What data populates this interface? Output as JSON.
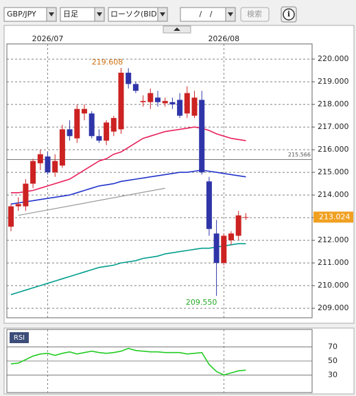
{
  "toolbar": {
    "pair": "GBP/JPY",
    "period": "日足",
    "chart_kind": "ローソク(BID)",
    "date": "/ /",
    "search": "検索",
    "info": "i"
  },
  "chart_data": {
    "type": "candlestick",
    "categories": [
      null,
      null,
      null,
      null,
      null,
      "2026/07",
      null,
      null,
      null,
      null,
      null,
      null,
      null,
      null,
      null,
      null,
      null,
      null,
      null,
      null,
      null,
      null,
      null,
      null,
      null,
      null,
      null,
      null,
      null,
      "2026/08",
      null,
      null,
      null
    ],
    "open": [
      212.6,
      213.5,
      213.5,
      214.5,
      215.4,
      215.7,
      215.0,
      215.3,
      216.9,
      216.5,
      217.6,
      217.6,
      216.6,
      216.4,
      216.8,
      216.9,
      219.4,
      218.9,
      218.1,
      218.1,
      218.3,
      218.05,
      218.1,
      218.2,
      217.6,
      217.5,
      218.2,
      214.6,
      212.3,
      211.0,
      212.0,
      212.2,
      213.0
    ],
    "high": [
      213.6,
      213.9,
      214.7,
      215.6,
      216.0,
      215.9,
      215.8,
      217.1,
      217.3,
      218.0,
      218.0,
      217.7,
      216.9,
      217.3,
      217.5,
      219.608,
      219.6,
      219.0,
      218.4,
      218.7,
      218.6,
      218.3,
      218.3,
      218.5,
      218.8,
      218.6,
      218.6,
      214.8,
      212.9,
      212.3,
      212.4,
      213.3,
      213.2
    ],
    "low": [
      212.4,
      213.3,
      213.3,
      214.3,
      215.1,
      214.9,
      214.8,
      215.2,
      216.4,
      216.3,
      217.3,
      216.5,
      216.3,
      216.2,
      216.6,
      216.7,
      218.7,
      218.5,
      217.9,
      217.8,
      217.9,
      217.9,
      217.8,
      217.4,
      217.4,
      217.4,
      214.9,
      212.2,
      209.55,
      210.9,
      211.8,
      212.0,
      212.9
    ],
    "close": [
      213.5,
      213.6,
      214.5,
      215.5,
      215.8,
      215.0,
      215.5,
      216.9,
      216.6,
      217.8,
      217.8,
      216.6,
      216.4,
      217.2,
      217.4,
      219.4,
      218.9,
      218.6,
      218.15,
      218.5,
      218.1,
      218.15,
      218.0,
      217.5,
      218.5,
      218.3,
      215.0,
      212.5,
      211.0,
      212.2,
      212.3,
      213.1,
      213.024
    ],
    "up_color": "#cc2222",
    "down_color": "#2f35a8",
    "moving_averages": [
      {
        "color": "#e8205a",
        "values": [
          214.1,
          214.1,
          214.15,
          214.2,
          214.3,
          214.4,
          214.5,
          214.6,
          214.7,
          214.9,
          215.1,
          215.3,
          215.5,
          215.6,
          215.8,
          215.9,
          216.1,
          216.3,
          216.5,
          216.6,
          216.7,
          216.8,
          216.85,
          216.9,
          216.95,
          217.0,
          216.95,
          216.85,
          216.7,
          216.6,
          216.5,
          216.45,
          216.4
        ]
      },
      {
        "color": "#2233cc",
        "values": [
          213.6,
          213.65,
          213.7,
          213.75,
          213.8,
          213.85,
          213.9,
          213.95,
          214.0,
          214.1,
          214.2,
          214.3,
          214.4,
          214.45,
          214.5,
          214.6,
          214.65,
          214.7,
          214.75,
          214.8,
          214.85,
          214.9,
          214.95,
          215.0,
          215.0,
          215.05,
          215.1,
          215.05,
          215.0,
          214.95,
          214.9,
          214.85,
          214.8
        ]
      },
      {
        "color": "#009e8e",
        "values": [
          209.6,
          209.7,
          209.8,
          209.9,
          210.0,
          210.1,
          210.2,
          210.3,
          210.4,
          210.5,
          210.6,
          210.7,
          210.8,
          210.85,
          210.9,
          211.0,
          211.05,
          211.1,
          211.2,
          211.25,
          211.3,
          211.4,
          211.45,
          211.5,
          211.55,
          211.6,
          211.65,
          211.65,
          211.7,
          211.75,
          211.8,
          211.85,
          211.85
        ]
      }
    ],
    "hline": {
      "value": 215.566,
      "label": "215.566"
    },
    "trend_line": {
      "start": [
        1,
        213.1
      ],
      "end": [
        21,
        214.3
      ]
    },
    "last_price": {
      "value": 213.024,
      "label": "213.024"
    },
    "high_label": {
      "index": 15,
      "label": "219.608"
    },
    "low_label": {
      "index": 28,
      "label": "209.550"
    },
    "ylim": [
      208.58,
      220.67
    ],
    "yticks": [
      {
        "value": 209,
        "label": "209.000"
      },
      {
        "value": 210,
        "label": "210.000"
      },
      {
        "value": 211,
        "label": "211.000"
      },
      {
        "value": 212,
        "label": "212.000"
      },
      {
        "value": 213,
        "label": "213.000"
      },
      {
        "value": 214,
        "label": "214.000"
      },
      {
        "value": 215,
        "label": "215.000"
      },
      {
        "value": 216,
        "label": "216.000"
      },
      {
        "value": 217,
        "label": "217.000"
      },
      {
        "value": 218,
        "label": "218.000"
      },
      {
        "value": 219,
        "label": "219.000"
      },
      {
        "value": 220,
        "label": "220.000"
      }
    ],
    "grid": true,
    "rsi": {
      "name": "RSI",
      "color": "#22cc22",
      "values": [
        46,
        47,
        52,
        57,
        60,
        61,
        58,
        61,
        63,
        60,
        62,
        64,
        62,
        61,
        62,
        64,
        68,
        65,
        64,
        63,
        63,
        62,
        62,
        62,
        60,
        61,
        62,
        45,
        35,
        30,
        33,
        36,
        37
      ],
      "ylim": [
        5,
        95
      ],
      "yticks": [
        30,
        50,
        70
      ]
    }
  }
}
